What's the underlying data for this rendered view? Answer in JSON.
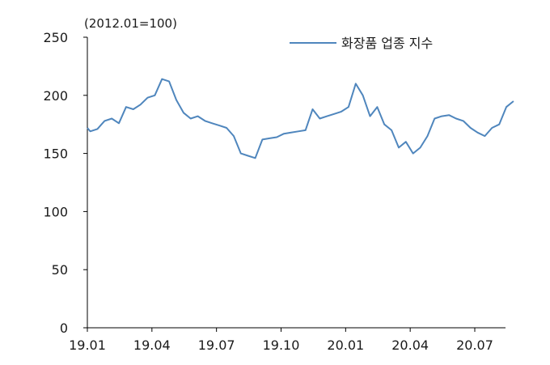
{
  "chart_data": {
    "type": "line",
    "unit_label": "(2012.01=100)",
    "legend_position": "top-right",
    "ylim": [
      0,
      250
    ],
    "y_ticks": [
      "0",
      "50",
      "100",
      "150",
      "200",
      "250"
    ],
    "x_ticks": [
      "19.01",
      "19.04",
      "19.07",
      "19.10",
      "20.01",
      "20.04",
      "20.07"
    ],
    "grid": false,
    "series": [
      {
        "name": "화장품 업종 지수",
        "color": "#4f86bd",
        "x": [
          "19.01",
          "19.01.05",
          "19.01.15",
          "19.01.25",
          "19.02.05",
          "19.02.15",
          "19.02.25",
          "19.03.05",
          "19.03.15",
          "19.03.25",
          "19.04.05",
          "19.04.15",
          "19.04.25",
          "19.05.05",
          "19.05.15",
          "19.05.25",
          "19.06.05",
          "19.06.15",
          "19.06.25",
          "19.07.05",
          "19.07.15",
          "19.07.25",
          "19.08.05",
          "19.08.15",
          "19.08.25",
          "19.09.05",
          "19.09.15",
          "19.09.25",
          "19.10.05",
          "19.10.15",
          "19.10.25",
          "19.11.05",
          "19.11.15",
          "19.11.25",
          "19.12.05",
          "19.12.15",
          "19.12.25",
          "20.01.05",
          "20.01.15",
          "20.01.25",
          "20.02.05",
          "20.02.15",
          "20.02.25",
          "20.03.05",
          "20.03.15",
          "20.03.25",
          "20.04.05",
          "20.04.15",
          "20.04.25",
          "20.05.05",
          "20.05.15",
          "20.05.25",
          "20.06.05",
          "20.06.15",
          "20.06.25",
          "20.07.05",
          "20.07.15",
          "20.07.25",
          "20.08.05",
          "20.08.15",
          "20.08.25"
        ],
        "values": [
          172,
          169,
          171,
          178,
          180,
          176,
          190,
          188,
          192,
          198,
          200,
          214,
          212,
          196,
          185,
          180,
          182,
          178,
          176,
          174,
          172,
          165,
          150,
          148,
          146,
          162,
          163,
          164,
          167,
          168,
          169,
          170,
          188,
          180,
          182,
          184,
          186,
          190,
          210,
          200,
          182,
          190,
          175,
          170,
          155,
          160,
          150,
          155,
          165,
          180,
          182,
          183,
          180,
          178,
          172,
          168,
          165,
          172,
          175,
          190,
          195
        ]
      }
    ]
  }
}
